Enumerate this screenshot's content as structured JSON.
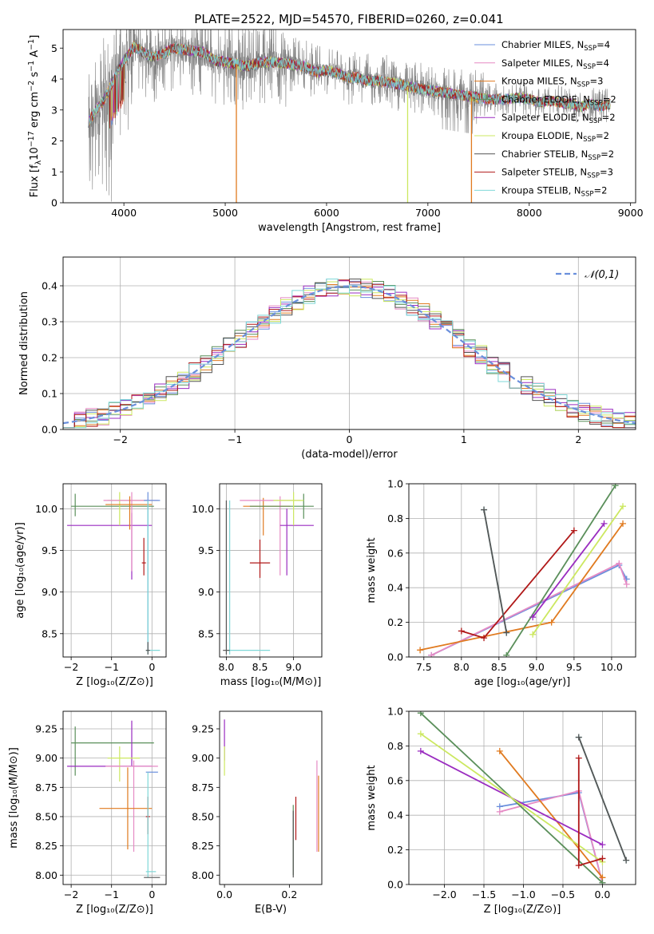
{
  "figure": {
    "title": "PLATE=2522, MJD=54570, FIBERID=0260, z=0.041"
  },
  "colors": {
    "Chabrier MILES": "#6a8fdc",
    "Salpeter MILES": "#e58ac4",
    "Kroupa MILES": "#e07a1f",
    "Chabrier ELODIE": "#5a8f5a",
    "Salpeter ELODIE": "#9a2cc0",
    "Kroupa ELODIE": "#cce860",
    "Chabrier STELIB": "#555555",
    "Salpeter STELIB": "#b01818",
    "Kroupa STELIB": "#7fd8d8",
    "data": "#808080"
  },
  "chart_data": [
    {
      "id": "spectrum",
      "type": "line",
      "title": "PLATE=2522, MJD=54570, FIBERID=0260, z=0.041",
      "xlabel": "wavelength [Angstrom, rest frame]",
      "ylabel_main": "Flux [f",
      "ylabel_sub": "λ",
      "ylabel_rest": "10",
      "ylabel_exp1": "−17",
      "ylabel_mid": " erg cm",
      "ylabel_exp2": "−2",
      "ylabel_s": " s",
      "ylabel_exp3": "−1",
      "ylabel_end": " A",
      "ylabel_exp4": "−1",
      "ylabel_close": "]",
      "xlim": [
        3400,
        9050
      ],
      "ylim": [
        0,
        5.6
      ],
      "xticks": [
        4000,
        5000,
        6000,
        7000,
        8000,
        9000
      ],
      "yticks": [
        0,
        1,
        2,
        3,
        4,
        5
      ],
      "grid": false,
      "legend_placement": "top-right",
      "legend": [
        {
          "name": "Chabrier MILES",
          "nssp": "4"
        },
        {
          "name": "Salpeter MILES",
          "nssp": "4"
        },
        {
          "name": "Kroupa MILES",
          "nssp": "3"
        },
        {
          "name": "Chabrier ELODIE",
          "nssp": "2"
        },
        {
          "name": "Salpeter ELODIE",
          "nssp": "2"
        },
        {
          "name": "Kroupa ELODIE",
          "nssp": "2"
        },
        {
          "name": "Chabrier STELIB",
          "nssp": "2"
        },
        {
          "name": "Salpeter STELIB",
          "nssp": "3"
        },
        {
          "name": "Kroupa STELIB",
          "nssp": "2"
        }
      ],
      "continuum": [
        [
          3650,
          2.6
        ],
        [
          3700,
          2.9
        ],
        [
          3800,
          3.3
        ],
        [
          3900,
          4.0
        ],
        [
          4000,
          4.6
        ],
        [
          4100,
          5.05
        ],
        [
          4200,
          4.85
        ],
        [
          4300,
          4.7
        ],
        [
          4400,
          4.85
        ],
        [
          4500,
          5.0
        ],
        [
          4600,
          4.95
        ],
        [
          4700,
          4.9
        ],
        [
          4800,
          4.85
        ],
        [
          4900,
          4.6
        ],
        [
          5000,
          4.55
        ],
        [
          5100,
          4.5
        ],
        [
          5200,
          4.4
        ],
        [
          5300,
          4.5
        ],
        [
          5400,
          4.55
        ],
        [
          5500,
          4.55
        ],
        [
          5600,
          4.5
        ],
        [
          5700,
          4.45
        ],
        [
          5800,
          4.4
        ],
        [
          5900,
          4.2
        ],
        [
          6000,
          4.3
        ],
        [
          6100,
          4.2
        ],
        [
          6200,
          4.05
        ],
        [
          6300,
          4.05
        ],
        [
          6400,
          3.95
        ],
        [
          6500,
          3.95
        ],
        [
          6600,
          3.9
        ],
        [
          6700,
          3.85
        ],
        [
          6800,
          3.75
        ],
        [
          6900,
          3.7
        ],
        [
          7000,
          3.65
        ],
        [
          7100,
          3.6
        ],
        [
          7200,
          3.55
        ],
        [
          7300,
          3.5
        ],
        [
          7400,
          3.45
        ],
        [
          7500,
          3.4
        ],
        [
          7600,
          3.35
        ],
        [
          7700,
          3.35
        ],
        [
          7800,
          3.35
        ],
        [
          7900,
          3.4
        ],
        [
          8000,
          3.35
        ],
        [
          8100,
          3.25
        ],
        [
          8200,
          3.3
        ],
        [
          8300,
          3.25
        ],
        [
          8400,
          3.2
        ],
        [
          8500,
          3.1
        ],
        [
          8600,
          3.2
        ],
        [
          8700,
          3.1
        ],
        [
          8800,
          3.2
        ]
      ]
    },
    {
      "id": "residuals",
      "type": "histogram",
      "xlabel": "(data-model)/error",
      "ylabel": "Normed distribution",
      "xlim": [
        -2.5,
        2.5
      ],
      "ylim": [
        0,
        0.48
      ],
      "xticks": [
        -2,
        -1,
        0,
        1,
        2
      ],
      "yticks": [
        0.0,
        0.1,
        0.2,
        0.3,
        0.4
      ],
      "grid": true,
      "legend_placement": "top-right",
      "legend_label": "𝒩(0,1)",
      "bin_width": 0.1,
      "bin_start": -2.5
    },
    {
      "id": "age-vs-Z",
      "type": "errorbar",
      "xlabel": "Z [log₁₀(Z/Z⊙)]",
      "ylabel": "age  [log₁₀(age/yr)]",
      "xlim": [
        -2.2,
        0.35
      ],
      "ylim": [
        8.22,
        10.3
      ],
      "xticks": [
        -2,
        -1,
        0
      ],
      "yticks": [
        8.5,
        9.0,
        9.5,
        10.0
      ],
      "grid": true,
      "points": [
        {
          "model": "Chabrier ELODIE",
          "x": -1.9,
          "xerr": [
            0.1,
            1.95
          ],
          "y": 10.03,
          "yerr": [
            0.12,
            0.15
          ]
        },
        {
          "model": "Salpeter ELODIE",
          "x": -0.5,
          "xerr": [
            1.6,
            0.5
          ],
          "y": 9.8,
          "yerr": [
            0.65,
            0.15
          ]
        },
        {
          "model": "Kroupa ELODIE",
          "x": -0.8,
          "xerr": [
            0.3,
            0.7
          ],
          "y": 10.1,
          "yerr": [
            0.3,
            0.1
          ]
        },
        {
          "model": "Salpeter MILES",
          "x": -0.5,
          "xerr": [
            0.7,
            0.65
          ],
          "y": 10.1,
          "yerr": [
            0.85,
            0.1
          ]
        },
        {
          "model": "Kroupa MILES",
          "x": -0.55,
          "xerr": [
            0.6,
            0.55
          ],
          "y": 10.05,
          "yerr": [
            0.3,
            0.1
          ]
        },
        {
          "model": "Chabrier MILES",
          "x": -0.1,
          "xerr": [
            0.1,
            0.3
          ],
          "y": 10.1,
          "yerr": [
            1.8,
            0.1
          ]
        },
        {
          "model": "Salpeter STELIB",
          "x": -0.2,
          "xerr": [
            0.05,
            0.05
          ],
          "y": 9.35,
          "yerr": [
            0.15,
            0.3
          ]
        },
        {
          "model": "Kroupa STELIB",
          "x": -0.1,
          "xerr": [
            0.05,
            0.3
          ],
          "y": 8.3,
          "yerr": [
            0.05,
            1.8
          ]
        },
        {
          "model": "Chabrier STELIB",
          "x": -0.1,
          "xerr": [
            0.05,
            0.05
          ],
          "y": 8.3,
          "yerr": [
            0.05,
            0.1
          ]
        }
      ]
    },
    {
      "id": "age-vs-mass",
      "type": "errorbar",
      "xlabel": "mass [log₁₀(M/M⊙)]",
      "ylabel": "",
      "xlim": [
        7.9,
        9.42
      ],
      "ylim": [
        8.22,
        10.3
      ],
      "xticks": [
        8.0,
        8.5,
        9.0
      ],
      "yticks": [
        8.5,
        9.0,
        9.5,
        10.0
      ],
      "grid": true,
      "points": [
        {
          "model": "Salpeter STELIB",
          "x": 8.5,
          "xerr": [
            0.15,
            0.15
          ],
          "y": 9.35,
          "yerr": [
            0.18,
            0.28
          ]
        },
        {
          "model": "Kroupa MILES",
          "x": 8.55,
          "xerr": [
            0.3,
            0.4
          ],
          "y": 10.03,
          "yerr": [
            0.35,
            0.1
          ]
        },
        {
          "model": "Salpeter MILES",
          "x": 8.8,
          "xerr": [
            0.6,
            0.3
          ],
          "y": 10.1,
          "yerr": [
            0.9,
            0.05
          ]
        },
        {
          "model": "Salpeter ELODIE",
          "x": 8.9,
          "xerr": [
            0.1,
            0.4
          ],
          "y": 9.8,
          "yerr": [
            0.6,
            0.2
          ]
        },
        {
          "model": "Chabrier ELODIE",
          "x": 9.15,
          "xerr": [
            0.8,
            0.15
          ],
          "y": 10.03,
          "yerr": [
            0.15,
            0.15
          ]
        },
        {
          "model": "Kroupa ELODIE",
          "x": 9.0,
          "xerr": [
            0.3,
            0.15
          ],
          "y": 10.1,
          "yerr": [
            0.3,
            0.1
          ]
        },
        {
          "model": "Kroupa STELIB",
          "x": 8.05,
          "xerr": [
            0.05,
            0.6
          ],
          "y": 8.3,
          "yerr": [
            0.05,
            1.8
          ]
        },
        {
          "model": "Chabrier STELIB",
          "x": 8.0,
          "xerr": [
            0.05,
            0.05
          ],
          "y": 8.3,
          "yerr": [
            0.05,
            1.8
          ]
        }
      ]
    },
    {
      "id": "weight-vs-age",
      "type": "line",
      "xlabel": "age  [log₁₀(age/yr)]",
      "ylabel": "mass weight",
      "xlim": [
        7.3,
        10.32
      ],
      "ylim": [
        0,
        1.0
      ],
      "xticks": [
        7.5,
        8.0,
        8.5,
        9.0,
        9.5,
        10.0
      ],
      "yticks": [
        0.0,
        0.2,
        0.4,
        0.6,
        0.8,
        1.0
      ],
      "grid": true,
      "series": [
        {
          "model": "Chabrier MILES",
          "x": [
            7.6,
            10.1,
            10.2
          ],
          "y": [
            0.01,
            0.53,
            0.45
          ]
        },
        {
          "model": "Salpeter MILES",
          "x": [
            7.6,
            10.1,
            10.2
          ],
          "y": [
            0.01,
            0.54,
            0.42
          ]
        },
        {
          "model": "Kroupa MILES",
          "x": [
            7.45,
            9.2,
            10.15
          ],
          "y": [
            0.04,
            0.2,
            0.77
          ]
        },
        {
          "model": "Chabrier ELODIE",
          "x": [
            8.6,
            10.05
          ],
          "y": [
            0.01,
            0.99
          ]
        },
        {
          "model": "Salpeter ELODIE",
          "x": [
            8.95,
            9.9
          ],
          "y": [
            0.23,
            0.77
          ]
        },
        {
          "model": "Kroupa ELODIE",
          "x": [
            8.95,
            10.15
          ],
          "y": [
            0.13,
            0.87
          ]
        },
        {
          "model": "Salpeter STELIB",
          "x": [
            8.0,
            8.3,
            9.5
          ],
          "y": [
            0.15,
            0.11,
            0.73
          ]
        },
        {
          "model": "Kroupa STELIB",
          "x": [
            8.3,
            8.6
          ],
          "y": [
            0.85,
            0.14
          ]
        },
        {
          "model": "Chabrier STELIB",
          "x": [
            8.3,
            8.6
          ],
          "y": [
            0.85,
            0.14
          ]
        }
      ]
    },
    {
      "id": "mass-vs-Z",
      "type": "errorbar",
      "xlabel": "Z [log₁₀(Z/Z⊙)]",
      "ylabel": "mass [log₁₀(M/M⊙)]",
      "xlim": [
        -2.2,
        0.35
      ],
      "ylim": [
        7.92,
        9.4
      ],
      "xticks": [
        -2,
        -1,
        0
      ],
      "yticks": [
        8.0,
        8.25,
        8.5,
        8.75,
        9.0,
        9.25
      ],
      "grid": true,
      "points": [
        {
          "model": "Chabrier ELODIE",
          "x": -1.9,
          "xerr": [
            0.1,
            1.95
          ],
          "y": 9.13,
          "yerr": [
            0.28,
            0.14
          ]
        },
        {
          "model": "Salpeter ELODIE",
          "x": -0.5,
          "xerr": [
            1.6,
            0.5
          ],
          "y": 8.93,
          "yerr": [
            0.0,
            0.39
          ]
        },
        {
          "model": "Kroupa ELODIE",
          "x": -0.8,
          "xerr": [
            0.3,
            0.5
          ],
          "y": 9.0,
          "yerr": [
            0.2,
            0.1
          ]
        },
        {
          "model": "Salpeter MILES",
          "x": -0.45,
          "xerr": [
            0.7,
            0.6
          ],
          "y": 8.93,
          "yerr": [
            0.73,
            0.05
          ]
        },
        {
          "model": "Kroupa MILES",
          "x": -0.6,
          "xerr": [
            0.7,
            0.6
          ],
          "y": 8.57,
          "yerr": [
            0.35,
            0.35
          ]
        },
        {
          "model": "Chabrier MILES",
          "x": -0.1,
          "xerr": [
            0.05,
            0.25
          ],
          "y": 8.88,
          "yerr": [
            0.0,
            0.0
          ]
        },
        {
          "model": "Salpeter STELIB",
          "x": -0.1,
          "xerr": [
            0.05,
            0.05
          ],
          "y": 8.5,
          "yerr": [
            0.15,
            0.17
          ]
        },
        {
          "model": "Kroupa STELIB",
          "x": -0.1,
          "xerr": [
            0.05,
            0.2
          ],
          "y": 8.03,
          "yerr": [
            0.05,
            0.85
          ]
        },
        {
          "model": "Chabrier STELIB",
          "x": 0.0,
          "xerr": [
            0.2,
            0.2
          ],
          "y": 7.98,
          "yerr": [
            0.0,
            0.0
          ]
        }
      ]
    },
    {
      "id": "mass-vs-ebv",
      "type": "errorbar",
      "xlabel": "E(B-V)",
      "ylabel": "",
      "xlim": [
        -0.015,
        0.3
      ],
      "ylim": [
        7.92,
        9.4
      ],
      "xticks": [
        0.0,
        0.2
      ],
      "yticks": [
        8.0,
        8.25,
        8.5,
        8.75,
        9.0,
        9.25
      ],
      "grid": false,
      "points": [
        {
          "model": "Salpeter ELODIE",
          "x": 0.0,
          "y": 9.13,
          "yerr": [
            0.15,
            0.2
          ]
        },
        {
          "model": "Kroupa ELODIE",
          "x": 0.0,
          "y": 9.0,
          "yerr": [
            0.15,
            0.1
          ]
        },
        {
          "model": "Chabrier ELODIE",
          "x": 0.212,
          "y": 8.3,
          "yerr": [
            0.3,
            0.3
          ]
        },
        {
          "model": "Chabrier STELIB",
          "x": 0.212,
          "y": 8.3,
          "yerr": [
            0.32,
            0.25
          ]
        },
        {
          "model": "Salpeter STELIB",
          "x": 0.22,
          "y": 8.5,
          "yerr": [
            0.2,
            0.17
          ]
        },
        {
          "model": "Salpeter MILES",
          "x": 0.285,
          "y": 8.6,
          "yerr": [
            0.4,
            0.38
          ]
        },
        {
          "model": "Kroupa MILES",
          "x": 0.29,
          "y": 8.55,
          "yerr": [
            0.35,
            0.3
          ]
        }
      ]
    },
    {
      "id": "weight-vs-Z",
      "type": "line",
      "xlabel": "Z [log₁₀(Z/Z⊙)]",
      "ylabel": "mass weight",
      "xlim": [
        -2.45,
        0.42
      ],
      "ylim": [
        0,
        1.0
      ],
      "xticks": [
        -2.0,
        -1.5,
        -1.0,
        -0.5,
        0.0
      ],
      "yticks": [
        0.0,
        0.2,
        0.4,
        0.6,
        0.8,
        1.0
      ],
      "grid": true,
      "series": [
        {
          "model": "Chabrier MILES",
          "x": [
            -1.3,
            -0.3,
            0.0
          ],
          "y": [
            0.45,
            0.53,
            0.01
          ]
        },
        {
          "model": "Salpeter MILES",
          "x": [
            -1.3,
            -0.3,
            0.0
          ],
          "y": [
            0.42,
            0.54,
            0.01
          ]
        },
        {
          "model": "Kroupa MILES",
          "x": [
            -1.3,
            0.0
          ],
          "y": [
            0.77,
            0.04
          ]
        },
        {
          "model": "Chabrier ELODIE",
          "x": [
            -2.3,
            0.0
          ],
          "y": [
            0.99,
            0.01
          ]
        },
        {
          "model": "Salpeter ELODIE",
          "x": [
            -2.3,
            0.0
          ],
          "y": [
            0.77,
            0.23
          ]
        },
        {
          "model": "Kroupa ELODIE",
          "x": [
            -2.3,
            0.0
          ],
          "y": [
            0.87,
            0.13
          ]
        },
        {
          "model": "Salpeter STELIB",
          "x": [
            -0.3,
            -0.3,
            0.0
          ],
          "y": [
            0.73,
            0.11,
            0.15
          ]
        },
        {
          "model": "Kroupa STELIB",
          "x": [
            -0.3,
            0.3
          ],
          "y": [
            0.85,
            0.14
          ]
        },
        {
          "model": "Chabrier STELIB",
          "x": [
            -0.3,
            0.3
          ],
          "y": [
            0.85,
            0.14
          ]
        }
      ]
    }
  ]
}
